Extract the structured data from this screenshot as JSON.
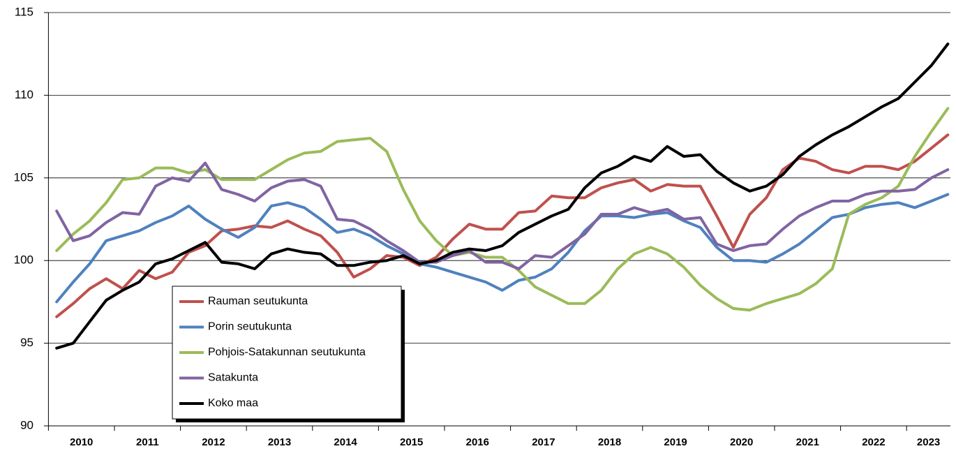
{
  "chart_data": {
    "type": "line",
    "categories": [
      null,
      "2010",
      null,
      null,
      null,
      "2011",
      null,
      null,
      null,
      "2012",
      null,
      null,
      null,
      "2013",
      null,
      null,
      null,
      "2014",
      null,
      null,
      null,
      "2015",
      null,
      null,
      null,
      "2016",
      null,
      null,
      null,
      "2017",
      null,
      null,
      null,
      "2018",
      null,
      null,
      null,
      "2019",
      null,
      null,
      null,
      "2020",
      null,
      null,
      null,
      "2021",
      null,
      null,
      null,
      "2022",
      null,
      null,
      null,
      "2023",
      null
    ],
    "ylim": [
      90,
      115
    ],
    "yticks": [
      90,
      95,
      100,
      105,
      110,
      115
    ],
    "grid": true,
    "series": [
      {
        "name": "Rauman seutukunta",
        "color": "#c0504d",
        "values": [
          96.6,
          97.4,
          98.3,
          98.9,
          98.3,
          99.4,
          98.9,
          99.3,
          100.5,
          100.9,
          101.8,
          101.9,
          102.1,
          102.0,
          102.4,
          101.9,
          101.5,
          100.5,
          99.0,
          99.5,
          100.3,
          100.2,
          99.7,
          100.2,
          101.3,
          102.2,
          101.9,
          101.9,
          102.9,
          103.0,
          103.9,
          103.8,
          103.8,
          104.4,
          104.7,
          104.9,
          104.2,
          104.6,
          104.5,
          104.5,
          102.7,
          100.8,
          102.8,
          103.8,
          105.5,
          106.2,
          106.0,
          105.5,
          105.3,
          105.7,
          105.7,
          105.5,
          106.0,
          106.8,
          107.6
        ]
      },
      {
        "name": "Porin seutukunta",
        "color": "#4f81bd",
        "values": [
          97.5,
          98.7,
          99.8,
          101.2,
          101.5,
          101.8,
          102.3,
          102.7,
          103.3,
          102.5,
          101.9,
          101.4,
          102.0,
          103.3,
          103.5,
          103.2,
          102.5,
          101.7,
          101.9,
          101.5,
          100.9,
          100.4,
          99.8,
          99.6,
          99.3,
          99.0,
          98.7,
          98.2,
          98.8,
          99.0,
          99.5,
          100.5,
          101.8,
          102.7,
          102.7,
          102.6,
          102.8,
          102.9,
          102.4,
          102.0,
          100.8,
          100.0,
          100.0,
          99.9,
          100.4,
          101.0,
          101.8,
          102.6,
          102.8,
          103.2,
          103.4,
          103.5,
          103.2,
          103.6,
          104.0
        ]
      },
      {
        "name": "Pohjois-Satakunnan seutukunta",
        "color": "#9bbb59",
        "values": [
          100.6,
          101.6,
          102.4,
          103.5,
          104.9,
          105.0,
          105.6,
          105.6,
          105.3,
          105.5,
          104.9,
          104.9,
          104.9,
          105.5,
          106.1,
          106.5,
          106.6,
          107.2,
          107.3,
          107.4,
          106.6,
          104.3,
          102.4,
          101.2,
          100.3,
          100.5,
          100.2,
          100.2,
          99.4,
          98.4,
          97.9,
          97.4,
          97.4,
          98.2,
          99.5,
          100.4,
          100.8,
          100.4,
          99.6,
          98.5,
          97.7,
          97.1,
          97.0,
          97.4,
          97.7,
          98.0,
          98.6,
          99.5,
          102.8,
          103.4,
          103.8,
          104.5,
          106.3,
          107.8,
          109.2
        ]
      },
      {
        "name": "Satakunta",
        "color": "#8064a2",
        "values": [
          103.0,
          101.2,
          101.5,
          102.3,
          102.9,
          102.8,
          104.5,
          105.0,
          104.8,
          105.9,
          104.3,
          104.0,
          103.6,
          104.4,
          104.8,
          104.9,
          104.5,
          102.5,
          102.4,
          101.9,
          101.2,
          100.6,
          99.9,
          99.9,
          100.3,
          100.6,
          99.9,
          99.9,
          99.5,
          100.3,
          100.2,
          100.9,
          101.6,
          102.8,
          102.8,
          103.2,
          102.9,
          103.1,
          102.5,
          102.6,
          101.0,
          100.6,
          100.9,
          101.0,
          101.9,
          102.7,
          103.2,
          103.6,
          103.6,
          104.0,
          104.2,
          104.2,
          104.3,
          105.0,
          105.5
        ]
      },
      {
        "name": "Koko maa",
        "color": "#000000",
        "values": [
          94.7,
          95.0,
          96.3,
          97.6,
          98.2,
          98.7,
          99.8,
          100.1,
          100.6,
          101.1,
          99.9,
          99.8,
          99.5,
          100.4,
          100.7,
          100.5,
          100.4,
          99.7,
          99.7,
          99.9,
          100.0,
          100.3,
          99.8,
          100.0,
          100.5,
          100.7,
          100.6,
          100.9,
          101.7,
          102.2,
          102.7,
          103.1,
          104.4,
          105.3,
          105.7,
          106.3,
          106.0,
          106.9,
          106.3,
          106.4,
          105.4,
          104.7,
          104.2,
          104.5,
          105.2,
          106.3,
          107.0,
          107.6,
          108.1,
          108.7,
          109.3,
          109.8,
          110.8,
          111.8,
          113.1
        ]
      }
    ]
  }
}
